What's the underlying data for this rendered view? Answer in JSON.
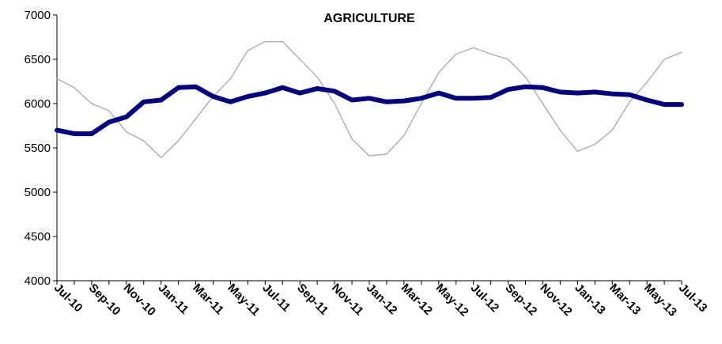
{
  "chart_data": {
    "type": "line",
    "title": "AGRICULTURE",
    "xlabel": "",
    "ylabel": "",
    "ylim": [
      4000,
      7000
    ],
    "yticks": [
      4000,
      4500,
      5000,
      5500,
      6000,
      6500,
      7000
    ],
    "x": [
      "Jul-10",
      "Aug-10",
      "Sep-10",
      "Oct-10",
      "Nov-10",
      "Dec-10",
      "Jan-11",
      "Feb-11",
      "Mar-11",
      "Apr-11",
      "May-11",
      "Jun-11",
      "Jul-11",
      "Aug-11",
      "Sep-11",
      "Oct-11",
      "Nov-11",
      "Dec-11",
      "Jan-12",
      "Feb-12",
      "Mar-12",
      "Apr-12",
      "May-12",
      "Jun-12",
      "Jul-12",
      "Aug-12",
      "Sep-12",
      "Oct-12",
      "Nov-12",
      "Dec-12",
      "Jan-13",
      "Feb-13",
      "Mar-13",
      "Apr-13",
      "May-13",
      "Jun-13",
      "Jul-13"
    ],
    "tick_labels": [
      "Jul-10",
      "Sep-10",
      "Nov-10",
      "Jan-11",
      "Mar-11",
      "May-11",
      "Jul-11",
      "Sep-11",
      "Nov-11",
      "Jan-12",
      "Mar-12",
      "May-12",
      "Jul-12",
      "Sep-12",
      "Nov-12",
      "Jan-13",
      "Mar-13",
      "May-13",
      "Jul-13"
    ],
    "grid": false,
    "legend": "none",
    "series": [
      {
        "color": "#a8a8a8",
        "style": "thin",
        "values": [
          6280,
          6180,
          6000,
          5920,
          5680,
          5580,
          5390,
          5580,
          5830,
          6080,
          6280,
          6600,
          6700,
          6700,
          6500,
          6300,
          6000,
          5600,
          5410,
          5430,
          5640,
          6000,
          6350,
          6560,
          6630,
          6560,
          6500,
          6300,
          6000,
          5700,
          5460,
          5540,
          5700,
          6020,
          6240,
          6500,
          6580
        ]
      },
      {
        "color": "#000080",
        "style": "thick",
        "values": [
          5700,
          5660,
          5660,
          5790,
          5850,
          6020,
          6040,
          6180,
          6190,
          6080,
          6020,
          6080,
          6120,
          6180,
          6120,
          6170,
          6140,
          6040,
          6060,
          6020,
          6030,
          6060,
          6120,
          6060,
          6060,
          6070,
          6160,
          6190,
          6180,
          6130,
          6120,
          6130,
          6110,
          6100,
          6040,
          5990,
          5990
        ]
      }
    ]
  }
}
